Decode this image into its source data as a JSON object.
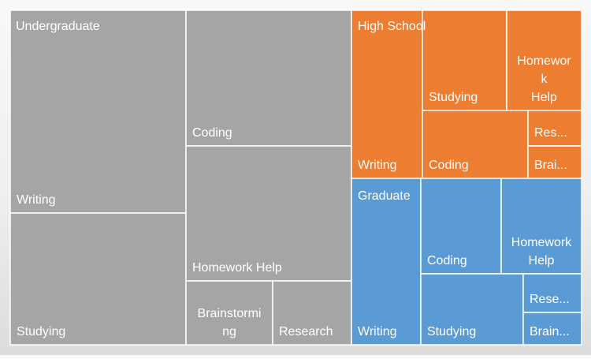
{
  "chart_data": {
    "type": "treemap",
    "title": "",
    "colors": {
      "Undergraduate": "#a5a5a5",
      "High School": "#ed7d31",
      "Graduate": "#5b9bd5",
      "border": "#ffffff"
    },
    "groups": [
      {
        "name": "Undergraduate",
        "label": "Undergraduate",
        "items": [
          {
            "name": "Writing",
            "label": "Writing",
            "value": 26
          },
          {
            "name": "Studying",
            "label": "Studying",
            "value": 17
          },
          {
            "name": "Coding",
            "label": "Coding",
            "value": 16
          },
          {
            "name": "Homework Help",
            "label": "Homework Help",
            "value": 16
          },
          {
            "name": "Brainstorming",
            "label": "Brainstormi ng",
            "value": 5
          },
          {
            "name": "Research",
            "label": "Research",
            "value": 5
          }
        ]
      },
      {
        "name": "High School",
        "label": "High School",
        "items": [
          {
            "name": "Writing",
            "label": "Writing",
            "value": 10
          },
          {
            "name": "Studying",
            "label": "Studying",
            "value": 9
          },
          {
            "name": "Homework Help",
            "label": "Homewor k Help",
            "value": 7
          },
          {
            "name": "Coding",
            "label": "Coding",
            "value": 7
          },
          {
            "name": "Research",
            "label": "Res...",
            "value": 3
          },
          {
            "name": "Brainstorming",
            "label": "Brai...",
            "value": 3
          }
        ]
      },
      {
        "name": "Graduate",
        "label": "Graduate",
        "items": [
          {
            "name": "Writing",
            "label": "Writing",
            "value": 9
          },
          {
            "name": "Coding",
            "label": "Coding",
            "value": 6
          },
          {
            "name": "Homework Help",
            "label": "Homework Help",
            "value": 6
          },
          {
            "name": "Studying",
            "label": "Studying",
            "value": 5
          },
          {
            "name": "Research",
            "label": "Rese...",
            "value": 2.5
          },
          {
            "name": "Brainstorming",
            "label": "Brain...",
            "value": 2.5
          }
        ]
      }
    ]
  }
}
